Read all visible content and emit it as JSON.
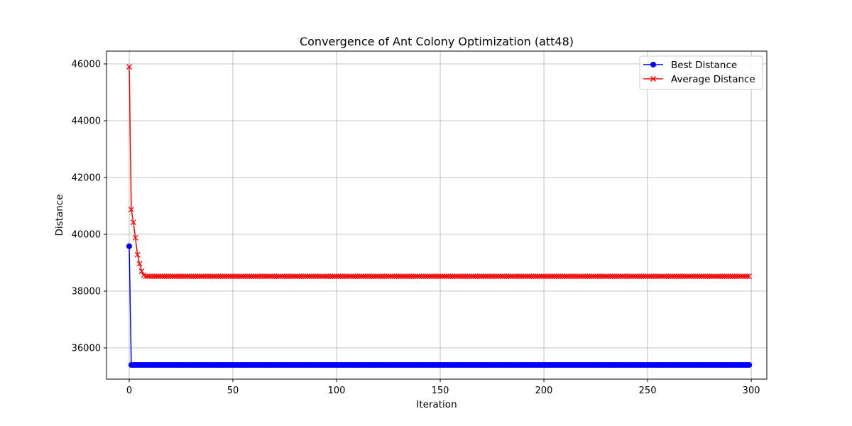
{
  "chart_data": {
    "type": "line",
    "title": "Convergence of Ant Colony Optimization (att48)",
    "xlabel": "Iteration",
    "ylabel": "Distance",
    "xlim": [
      -10.95,
      307.5
    ],
    "ylim": [
      34900,
      46450
    ],
    "xticks": [
      0,
      50,
      100,
      150,
      200,
      250,
      300
    ],
    "yticks": [
      36000,
      38000,
      40000,
      42000,
      44000,
      46000
    ],
    "grid": true,
    "legend_position": "top-right",
    "n_iterations": 300,
    "series": [
      {
        "name": "Best Distance",
        "color": "#0000ff",
        "marker": "circle",
        "head_values": [
          39580,
          35400
        ],
        "plateau_value": 35400
      },
      {
        "name": "Average Distance",
        "color": "#ff0000",
        "marker": "x",
        "head_values": [
          45900,
          40870,
          40420,
          39880,
          39280,
          38960,
          38700,
          38560
        ],
        "plateau_value": 38520
      }
    ]
  }
}
